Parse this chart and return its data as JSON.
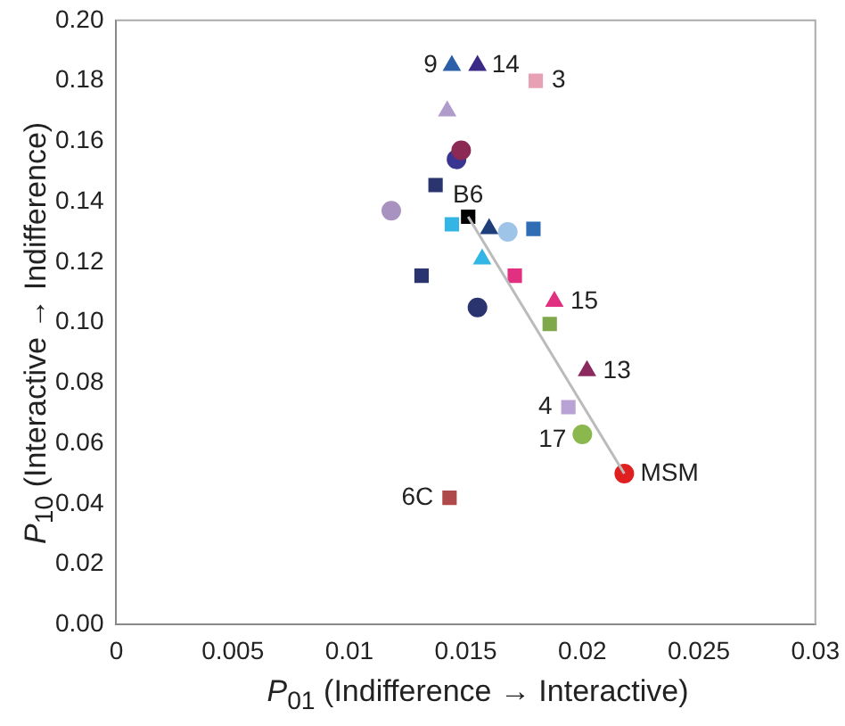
{
  "chart_data": {
    "type": "scatter",
    "xlabel": "P$_{01}$ (Indifference → Interactive)",
    "ylabel": "P$_{10}$ (Interactive → Indifference)",
    "xlim": [
      0,
      0.03
    ],
    "xticks": [
      0,
      0.005,
      0.01,
      0.015,
      0.02,
      0.025,
      0.03
    ],
    "ylim": [
      0,
      0.2
    ],
    "yticks": [
      {
        "value": 0,
        "label": "0.00"
      },
      {
        "value": 0.02,
        "label": "0.02"
      },
      {
        "value": 0.04,
        "label": "0.04"
      },
      {
        "value": 0.06,
        "label": "0.06"
      },
      {
        "value": 0.08,
        "label": "0.08"
      },
      {
        "value": 0.1,
        "label": "0.10"
      },
      {
        "value": 0.12,
        "label": "0.12"
      },
      {
        "value": 0.14,
        "label": "0.14"
      },
      {
        "value": 0.16,
        "label": "0.16"
      },
      {
        "value": 0.18,
        "label": "0.18"
      },
      {
        "value": 0.2,
        "label": "0.20"
      }
    ],
    "grid": false,
    "legend": false,
    "series": [
      {
        "type": "line",
        "x": [
          0.0151,
          0.0218
        ],
        "values": [
          0.135,
          0.05
        ],
        "color": "#bbbbbb",
        "marker": "none"
      },
      {
        "x": [
          0.0144
        ],
        "values": [
          0.185
        ],
        "color": "#2b5fa8",
        "marker": "triangle"
      },
      {
        "x": [
          0.0155
        ],
        "values": [
          0.185
        ],
        "color": "#3b2a86",
        "marker": "triangle"
      },
      {
        "x": [
          0.018
        ],
        "values": [
          0.18
        ],
        "color": "#e8a0b4",
        "marker": "square"
      },
      {
        "x": [
          0.0142
        ],
        "values": [
          0.17
        ],
        "color": "#b09ccc",
        "marker": "triangle"
      },
      {
        "x": [
          0.0148
        ],
        "values": [
          0.157
        ],
        "color": "#8b2a55",
        "marker": "circle"
      },
      {
        "x": [
          0.0146
        ],
        "values": [
          0.154
        ],
        "color": "#3a3590",
        "marker": "circle"
      },
      {
        "x": [
          0.0137
        ],
        "values": [
          0.1455
        ],
        "color": "#2a3570",
        "marker": "square"
      },
      {
        "x": [
          0.0151
        ],
        "values": [
          0.135
        ],
        "color": "#000000",
        "marker": "square"
      },
      {
        "x": [
          0.0118
        ],
        "values": [
          0.137
        ],
        "color": "#a893c0",
        "marker": "circle"
      },
      {
        "x": [
          0.0144
        ],
        "values": [
          0.1325
        ],
        "color": "#33b5e5",
        "marker": "square"
      },
      {
        "x": [
          0.016
        ],
        "values": [
          0.131
        ],
        "color": "#1f3f7a",
        "marker": "triangle"
      },
      {
        "x": [
          0.0168
        ],
        "values": [
          0.13
        ],
        "color": "#9ec5e8",
        "marker": "circle"
      },
      {
        "x": [
          0.0179
        ],
        "values": [
          0.131
        ],
        "color": "#2f6db5",
        "marker": "square"
      },
      {
        "x": [
          0.0157
        ],
        "values": [
          0.121
        ],
        "color": "#33b5e5",
        "marker": "triangle"
      },
      {
        "x": [
          0.0131
        ],
        "values": [
          0.1155
        ],
        "color": "#2a3570",
        "marker": "square"
      },
      {
        "x": [
          0.0171
        ],
        "values": [
          0.1155
        ],
        "color": "#e0307f",
        "marker": "square"
      },
      {
        "x": [
          0.0155
        ],
        "values": [
          0.105
        ],
        "color": "#2a3570",
        "marker": "circle"
      },
      {
        "x": [
          0.0188
        ],
        "values": [
          0.107
        ],
        "color": "#e0307f",
        "marker": "triangle"
      },
      {
        "x": [
          0.0186
        ],
        "values": [
          0.0995
        ],
        "color": "#7fa84a",
        "marker": "square"
      },
      {
        "x": [
          0.0202
        ],
        "values": [
          0.084
        ],
        "color": "#8b2a5e",
        "marker": "triangle"
      },
      {
        "x": [
          0.0194
        ],
        "values": [
          0.072
        ],
        "color": "#b9a2d4",
        "marker": "square"
      },
      {
        "x": [
          0.02
        ],
        "values": [
          0.063
        ],
        "color": "#8ab84e",
        "marker": "circle"
      },
      {
        "x": [
          0.0218
        ],
        "values": [
          0.05
        ],
        "color": "#e02020",
        "marker": "circle"
      },
      {
        "x": [
          0.0143
        ],
        "values": [
          0.042
        ],
        "color": "#b04a4a",
        "marker": "square"
      }
    ],
    "annotations": [
      {
        "text": "9",
        "x": 0.0144,
        "y": 0.185
      },
      {
        "text": "14",
        "x": 0.0155,
        "y": 0.185
      },
      {
        "text": "3",
        "x": 0.018,
        "y": 0.18
      },
      {
        "text": "B6",
        "x": 0.0151,
        "y": 0.135
      },
      {
        "text": "15",
        "x": 0.0188,
        "y": 0.107
      },
      {
        "text": "13",
        "x": 0.0202,
        "y": 0.084
      },
      {
        "text": "4",
        "x": 0.0194,
        "y": 0.072
      },
      {
        "text": "17",
        "x": 0.02,
        "y": 0.063
      },
      {
        "text": "MSM",
        "x": 0.0218,
        "y": 0.05
      },
      {
        "text": "6C",
        "x": 0.0143,
        "y": 0.042
      }
    ]
  }
}
